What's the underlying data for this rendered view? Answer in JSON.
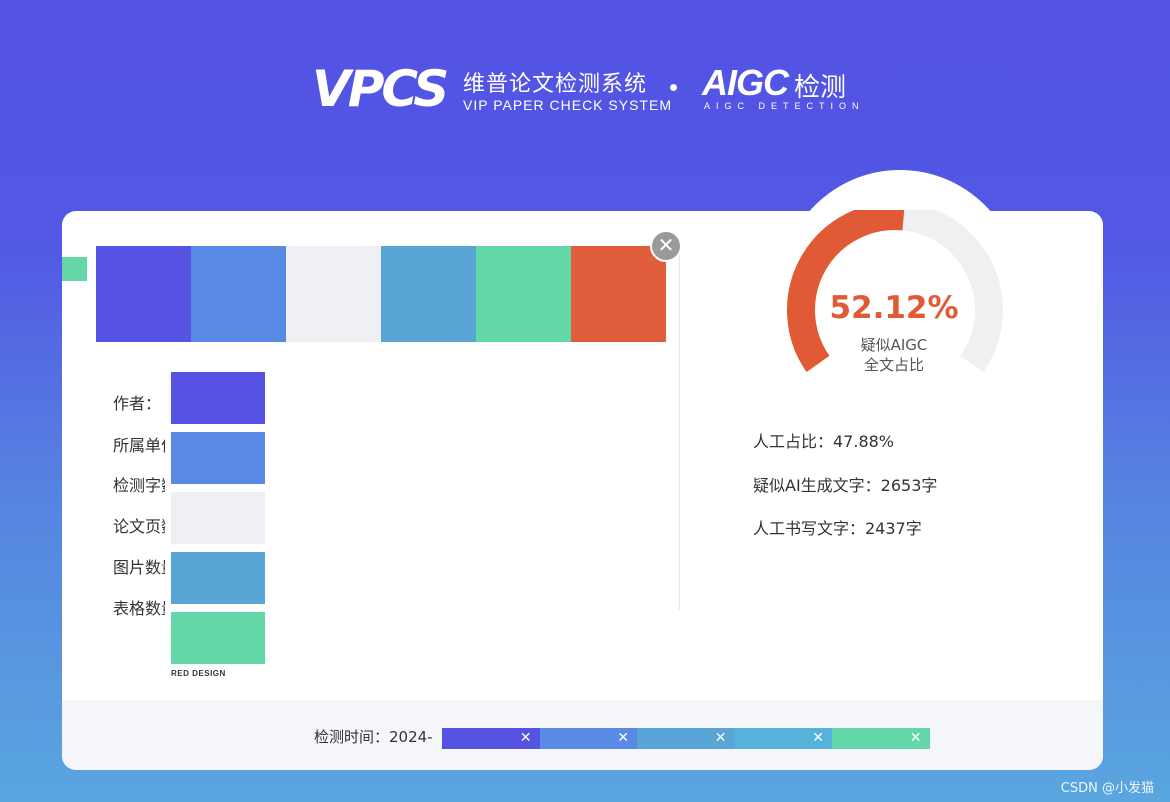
{
  "header": {
    "logo_text": "VPCS",
    "title_cn": "维普论文检测系统",
    "title_en": "VIP PAPER CHECK SYSTEM",
    "aigc_logo": "AIGC",
    "aigc_cn": "检测",
    "aigc_en": "AIGC DETECTION"
  },
  "palette": {
    "top": [
      "#5652e2",
      "#598be6",
      "#eef0f4",
      "#58a5d6",
      "#64d7a9",
      "#e05e3b"
    ],
    "left": [
      "#5652e2",
      "#598be6",
      "#eef0f4",
      "#58a5d6",
      "#64d7a9"
    ]
  },
  "close_glyph": "✕",
  "info_labels": [
    "作者：",
    "所属单位",
    "检测字数",
    "论文页数",
    "图片数量",
    "表格数量"
  ],
  "palette_caption": "RED DESIGN",
  "gauge": {
    "percent_value": 52.12,
    "percent_label": "52.12%",
    "line1": "疑似AIGC",
    "line2": "全文占比",
    "ai_color": "#e05a35",
    "track_color": "#f0f0f2"
  },
  "stats": [
    "人工占比：47.88%",
    "疑似AI生成文字：2653字",
    "人工书写文字：2437字"
  ],
  "footer": {
    "time_label": "检测时间：2024-",
    "segments": [
      {
        "color": "#5652e2",
        "glyph": "✕"
      },
      {
        "color": "#598be6",
        "glyph": "✕"
      },
      {
        "color": "#58a5d6",
        "glyph": "✕"
      },
      {
        "color": "#56b2da",
        "glyph": "✕"
      },
      {
        "color": "#64d7a9",
        "glyph": "✕"
      }
    ]
  },
  "watermark": "CSDN @小发猫"
}
